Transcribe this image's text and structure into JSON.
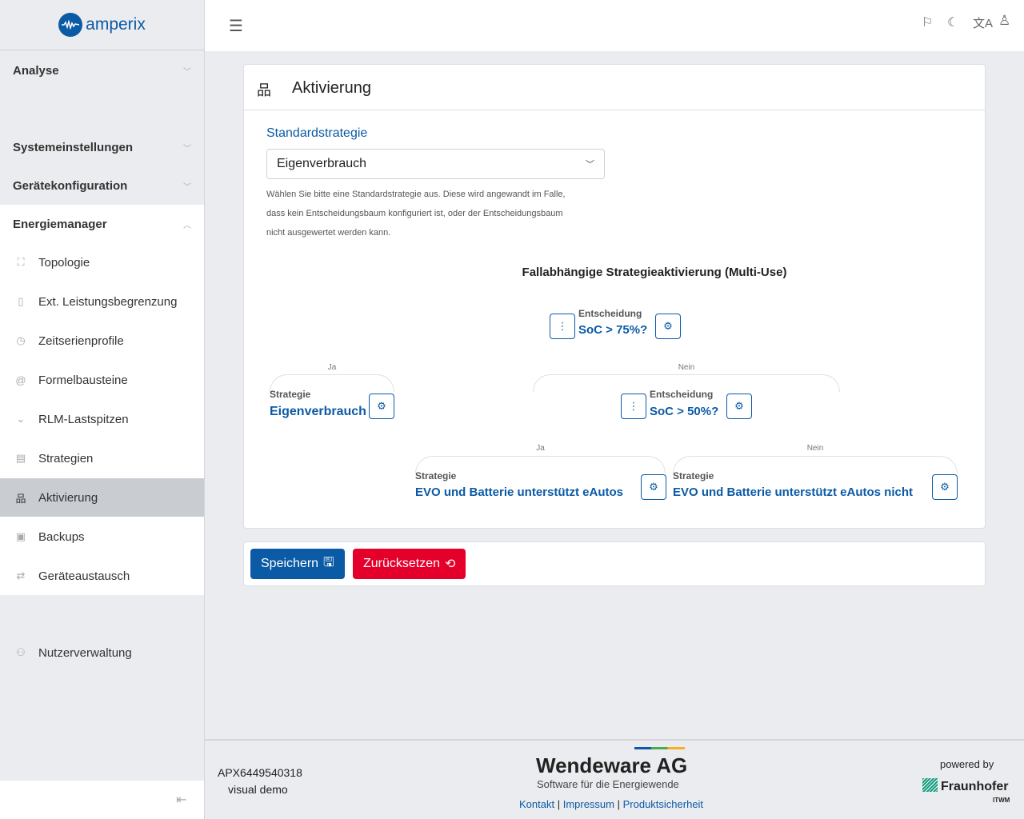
{
  "brand": {
    "name": "amperix",
    "color": "#0b5aa6"
  },
  "sidebar": {
    "sections": [
      {
        "label": "Analyse"
      },
      {
        "label": "Systemeinstellungen"
      },
      {
        "label": "Gerätekonfiguration"
      },
      {
        "label": "Energiemanager"
      }
    ],
    "items": [
      {
        "label": "Topologie",
        "icon": "topology-icon"
      },
      {
        "label": "Ext. Leistungsbegrenzung",
        "icon": "limit-icon"
      },
      {
        "label": "Zeitserienprofile",
        "icon": "timer-icon"
      },
      {
        "label": "Formelbausteine",
        "icon": "at-icon"
      },
      {
        "label": "RLM-Lastspitzen",
        "icon": "peak-icon"
      },
      {
        "label": "Strategien",
        "icon": "strategies-icon"
      },
      {
        "label": "Aktivierung",
        "icon": "hierarchy-icon",
        "active": true
      },
      {
        "label": "Backups",
        "icon": "backup-icon"
      },
      {
        "label": "Geräteaustausch",
        "icon": "swap-icon"
      }
    ],
    "user_management": "Nutzerverwaltung"
  },
  "card": {
    "title": "Aktivierung",
    "field_label": "Standardstrategie",
    "select_value": "Eigenverbrauch",
    "help": [
      "Wählen Sie bitte eine Standardstrategie aus. Diese wird angewandt im Falle,",
      "dass kein Entscheidungsbaum konfiguriert ist, oder der Entscheidungsbaum",
      "nicht ausgewertet werden kann."
    ],
    "tree_title": "Fallabhängige Strategieaktivierung (Multi-Use)",
    "tree": {
      "root": {
        "type": "Entscheidung",
        "value": "SoC > 75%?"
      },
      "yes_label": "Ja",
      "no_label": "Nein",
      "yes": {
        "type": "Strategie",
        "value": "Eigenverbrauch"
      },
      "no": {
        "type": "Entscheidung",
        "value": "SoC > 50%?"
      },
      "no_yes": {
        "type": "Strategie",
        "value": "EVO und Batterie unterstützt eAutos"
      },
      "no_no": {
        "type": "Strategie",
        "value": "EVO und Batterie unterstützt eAutos nicht"
      }
    }
  },
  "actions": {
    "save": "Speichern",
    "reset": "Zurücksetzen",
    "save_color": "#0b5aa6",
    "reset_color": "#e4002b"
  },
  "footer": {
    "device_id": "APX6449540318",
    "mode": "visual demo",
    "company": "Wendeware AG",
    "tagline": "Software für die Energiewende",
    "links": [
      "Kontakt",
      "Impressum",
      "Produktsicherheit"
    ],
    "powered_by": "powered by",
    "partner": "Fraunhofer",
    "partner_sub": "ITWM"
  }
}
